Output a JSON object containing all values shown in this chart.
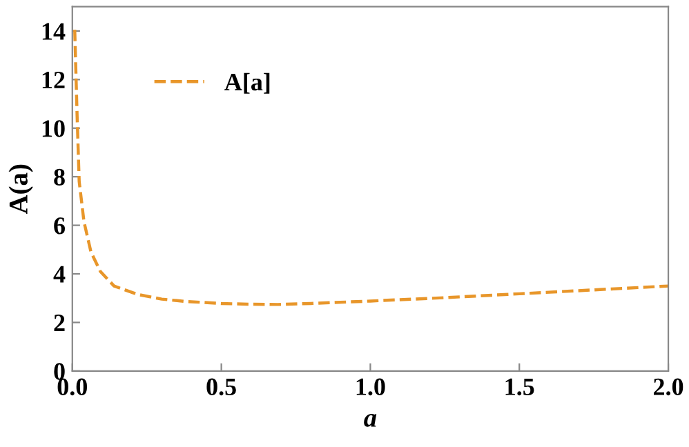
{
  "chart_data": {
    "type": "line",
    "xlabel": "a",
    "ylabel": "A(a)",
    "xlim": [
      0,
      2.0
    ],
    "ylim": [
      0,
      15
    ],
    "xticks": [
      {
        "value": 0,
        "label": "0.0"
      },
      0.5,
      {
        "value": 1,
        "label": "1.0"
      },
      1.5,
      {
        "value": 2,
        "label": "2.0"
      }
    ],
    "yticks": [
      0,
      2,
      4,
      6,
      8,
      10,
      12,
      14
    ],
    "series": [
      {
        "name": "A[a]",
        "color": "#e8962a",
        "x": [
          0.008,
          0.016,
          0.023,
          0.039,
          0.0625,
          0.094,
          0.14,
          0.22,
          0.3,
          0.375,
          0.5,
          0.59,
          0.69,
          0.8,
          1.0,
          1.25,
          1.5,
          1.75,
          2.0
        ],
        "values": [
          14.05,
          10.5,
          7.8,
          6.15,
          4.9,
          4.1,
          3.5,
          3.15,
          2.96,
          2.87,
          2.78,
          2.75,
          2.74,
          2.78,
          2.88,
          3.02,
          3.18,
          3.34,
          3.5
        ]
      }
    ],
    "line_style": "dashed",
    "marker": "none",
    "grid": false,
    "legend": "top left"
  }
}
